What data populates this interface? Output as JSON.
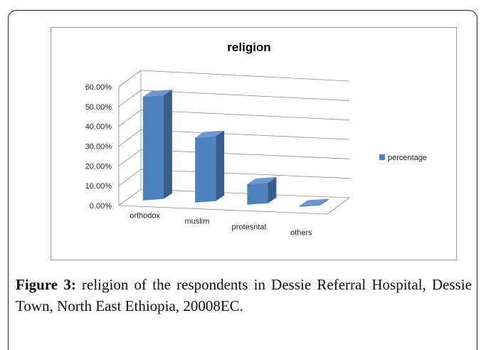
{
  "chart_data": {
    "type": "bar",
    "title": "religion",
    "categories": [
      "orthodox",
      "muslim",
      "protesntat",
      "others"
    ],
    "series": [
      {
        "name": "percentage",
        "values": [
          52.5,
          33.0,
          10.5,
          0.5
        ],
        "color": "#4f81bd"
      }
    ],
    "yticks": [
      "0.00%",
      "10.00%",
      "20.00%",
      "30.00%",
      "40.00%",
      "50.00%",
      "60.00%"
    ],
    "ylim": [
      0,
      60
    ],
    "grid": true,
    "legend": "right"
  },
  "caption": {
    "label": "Figure 3:",
    "text": " religion of the respondents in Dessie Referral Hospital, Dessie Town, North East Ethiopia, 20008EC."
  }
}
